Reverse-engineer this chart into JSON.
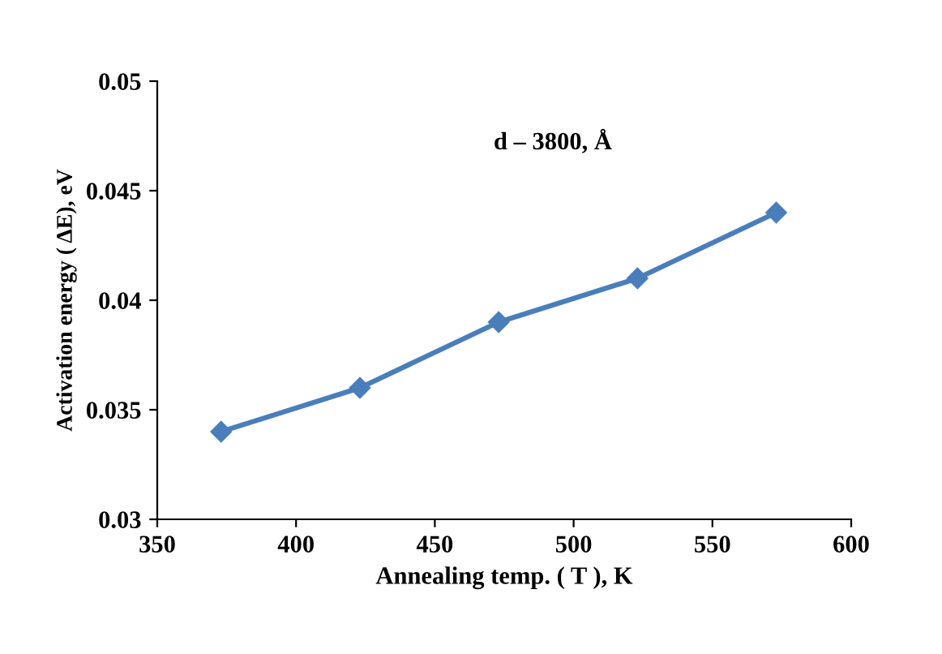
{
  "chart_data": {
    "type": "line",
    "xlabel": "Annealing temp. ( T ), K",
    "ylabel": "Activation energy ( ΔE), eV",
    "annotations": [
      "d – 3800, Å"
    ],
    "x": [
      373,
      423,
      473,
      523,
      573
    ],
    "series": [
      {
        "color": "#4a7ebb",
        "values": [
          0.034,
          0.036,
          0.039,
          0.041,
          0.044
        ]
      }
    ],
    "xlim": [
      350,
      600
    ],
    "xticks": [
      350,
      400,
      450,
      500,
      550,
      600
    ],
    "ylim": [
      0.03,
      0.05
    ],
    "yticks": [
      0.03,
      0.035,
      0.04,
      0.045,
      0.05
    ],
    "grid": false,
    "legend": false,
    "marker": "diamond",
    "line_style": "solid"
  }
}
